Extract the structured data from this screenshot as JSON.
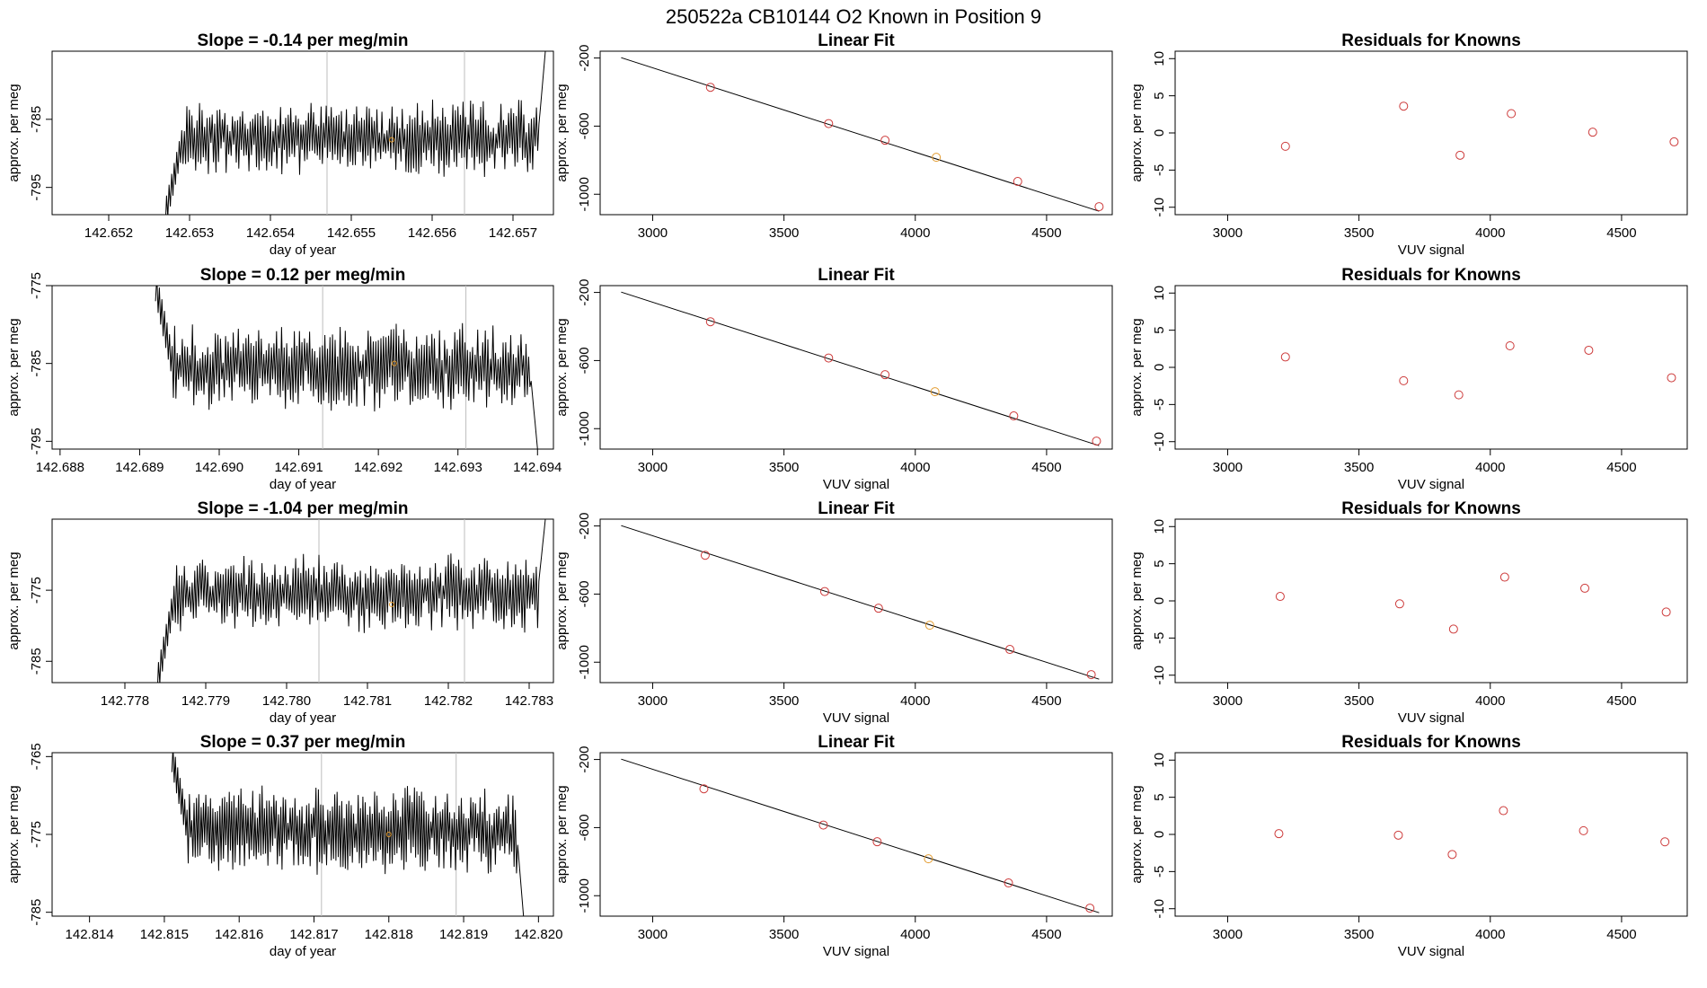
{
  "page_title": "250522a      CB10144    O2 Known in Position  9",
  "chart_data": [
    {
      "type": "line",
      "title": "Slope =  -0.14  per meg/min",
      "xlabel": "day of year",
      "ylabel": "approx. per meg",
      "xlim": [
        142.6513,
        142.6575
      ],
      "ylim": [
        -799,
        -775
      ],
      "xticks": [
        "142.652",
        "142.653",
        "142.654",
        "142.655",
        "142.656",
        "142.657"
      ],
      "yticks": [
        "-785",
        "-795"
      ],
      "start": 142.6527,
      "end": 142.6574,
      "center": -787.8,
      "amp": 4,
      "startv": -799,
      "endv": -775,
      "vlines": [
        142.6547,
        142.6564
      ],
      "highlight": {
        "x": 142.6555,
        "y": -788
      }
    },
    {
      "type": "line",
      "title": "Linear Fit",
      "xlabel": "",
      "ylabel": "approx. per meg",
      "xlim": [
        2800,
        4750
      ],
      "ylim": [
        -1120,
        -160
      ],
      "xticks": [
        "3000",
        "3500",
        "4000",
        "4500"
      ],
      "yticks": [
        "-200",
        "-600",
        "-1000"
      ],
      "fit": [
        [
          2880,
          -198
        ],
        [
          4700,
          -1100
        ]
      ],
      "x": [
        3220,
        3670,
        3885,
        4080,
        4390,
        4700
      ],
      "y": [
        -372,
        -585,
        -683,
        -783,
        -925,
        -1073
      ],
      "highlight_index": 3
    },
    {
      "type": "scatter",
      "title": "Residuals for Knowns",
      "xlabel": "VUV signal",
      "ylabel": "approx. per meg",
      "xlim": [
        2800,
        4750
      ],
      "ylim": [
        -11,
        11
      ],
      "xticks": [
        "3000",
        "3500",
        "4000",
        "4500"
      ],
      "yticks": [
        "10",
        "5",
        "0",
        "-5",
        "-10"
      ],
      "x": [
        3220,
        3670,
        3885,
        4080,
        4390,
        4700
      ],
      "y": [
        -1.8,
        3.6,
        -3.0,
        2.6,
        0.1,
        -1.2
      ]
    },
    {
      "type": "line",
      "title": "Slope =  0.12  per meg/min",
      "xlabel": "day of year",
      "ylabel": "approx. per meg",
      "xlim": [
        142.6879,
        142.6942
      ],
      "ylim": [
        -796,
        -775
      ],
      "xticks": [
        "142.688",
        "142.689",
        "142.690",
        "142.691",
        "142.692",
        "142.693",
        "142.694"
      ],
      "yticks": [
        "-775",
        "-785",
        "-795"
      ],
      "start": 142.6892,
      "end": 142.694,
      "center": -785.5,
      "amp": 4,
      "startv": -775,
      "endv": -796,
      "vlines": [
        142.6913,
        142.6931
      ],
      "highlight": {
        "x": 142.6922,
        "y": -785
      }
    },
    {
      "type": "line",
      "title": "Linear Fit",
      "xlabel": "VUV signal",
      "ylabel": "approx. per meg",
      "xlim": [
        2800,
        4750
      ],
      "ylim": [
        -1120,
        -160
      ],
      "xticks": [
        "3000",
        "3500",
        "4000",
        "4500"
      ],
      "yticks": [
        "-200",
        "-600",
        "-1000"
      ],
      "fit": [
        [
          2880,
          -198
        ],
        [
          4700,
          -1100
        ]
      ],
      "x": [
        3220,
        3670,
        3885,
        4075,
        4375,
        4690
      ],
      "y": [
        -372,
        -585,
        -683,
        -783,
        -925,
        -1073
      ],
      "highlight_index": 3
    },
    {
      "type": "scatter",
      "title": "Residuals for Knowns",
      "xlabel": "VUV signal",
      "ylabel": "approx. per meg",
      "xlim": [
        2800,
        4750
      ],
      "ylim": [
        -11,
        11
      ],
      "xticks": [
        "3000",
        "3500",
        "4000",
        "4500"
      ],
      "yticks": [
        "10",
        "5",
        "0",
        "-5",
        "-10"
      ],
      "x": [
        3220,
        3670,
        3880,
        4075,
        4375,
        4690
      ],
      "y": [
        1.4,
        -1.8,
        -3.7,
        2.9,
        2.3,
        -1.4
      ]
    },
    {
      "type": "line",
      "title": "Slope =  -1.04  per meg/min",
      "xlabel": "day of year",
      "ylabel": "approx. per meg",
      "xlim": [
        142.7771,
        142.7833
      ],
      "ylim": [
        -788,
        -765
      ],
      "xticks": [
        "142.778",
        "142.779",
        "142.780",
        "142.781",
        "142.782",
        "142.783"
      ],
      "yticks": [
        "-775",
        "-785"
      ],
      "start": 142.7784,
      "end": 142.7832,
      "center": -775.5,
      "amp": 4,
      "startv": -788,
      "endv": -765,
      "vlines": [
        142.7804,
        142.7822
      ],
      "highlight": {
        "x": 142.7813,
        "y": -777
      }
    },
    {
      "type": "line",
      "title": "Linear Fit",
      "xlabel": "VUV signal",
      "ylabel": "approx. per meg",
      "xlim": [
        2800,
        4750
      ],
      "ylim": [
        -1120,
        -160
      ],
      "xticks": [
        "3000",
        "3500",
        "4000",
        "4500"
      ],
      "yticks": [
        "-200",
        "-600",
        "-1000"
      ],
      "fit": [
        [
          2880,
          -198
        ],
        [
          4700,
          -1100
        ]
      ],
      "x": [
        3200,
        3655,
        3860,
        4055,
        4360,
        4670
      ],
      "y": [
        -372,
        -585,
        -683,
        -783,
        -925,
        -1073
      ],
      "highlight_index": 3
    },
    {
      "type": "scatter",
      "title": "Residuals for Knowns",
      "xlabel": "VUV signal",
      "ylabel": "approx. per meg",
      "xlim": [
        2800,
        4750
      ],
      "ylim": [
        -11,
        11
      ],
      "xticks": [
        "3000",
        "3500",
        "4000",
        "4500"
      ],
      "yticks": [
        "10",
        "5",
        "0",
        "-5",
        "-10"
      ],
      "x": [
        3200,
        3655,
        3860,
        4055,
        4360,
        4670
      ],
      "y": [
        0.6,
        -0.4,
        -3.8,
        3.2,
        1.7,
        -1.5
      ]
    },
    {
      "type": "line",
      "title": "Slope =  0.37  per meg/min",
      "xlabel": "day of year",
      "ylabel": "approx. per meg",
      "xlim": [
        142.8135,
        142.8202
      ],
      "ylim": [
        -785.5,
        -764.5
      ],
      "xticks": [
        "142.814",
        "142.815",
        "142.816",
        "142.817",
        "142.818",
        "142.819",
        "142.820"
      ],
      "yticks": [
        "-765",
        "-775",
        "-785"
      ],
      "start": 142.8151,
      "end": 142.8198,
      "center": -774.5,
      "amp": 4,
      "startv": -765,
      "endv": -785.5,
      "vlines": [
        142.8171,
        142.8189
      ],
      "highlight": {
        "x": 142.818,
        "y": -775
      }
    },
    {
      "type": "line",
      "title": "Linear Fit",
      "xlabel": "VUV signal",
      "ylabel": "approx. per meg",
      "xlim": [
        2800,
        4750
      ],
      "ylim": [
        -1120,
        -160
      ],
      "xticks": [
        "3000",
        "3500",
        "4000",
        "4500"
      ],
      "yticks": [
        "-200",
        "-600",
        "-1000"
      ],
      "fit": [
        [
          2880,
          -198
        ],
        [
          4700,
          -1100
        ]
      ],
      "x": [
        3195,
        3650,
        3855,
        4050,
        4355,
        4665
      ],
      "y": [
        -372,
        -585,
        -683,
        -783,
        -925,
        -1073
      ],
      "highlight_index": 3
    },
    {
      "type": "scatter",
      "title": "Residuals for Knowns",
      "xlabel": "VUV signal",
      "ylabel": "approx. per meg",
      "xlim": [
        2800,
        4750
      ],
      "ylim": [
        -11,
        11
      ],
      "xticks": [
        "3000",
        "3500",
        "4000",
        "4500"
      ],
      "yticks": [
        "10",
        "5",
        "0",
        "-5",
        "-10"
      ],
      "x": [
        3195,
        3650,
        3855,
        4050,
        4355,
        4665
      ],
      "y": [
        0.1,
        -0.1,
        -2.7,
        3.2,
        0.5,
        -1.0
      ]
    }
  ],
  "colors": {
    "series": "#000000",
    "point": "#cd3b3b",
    "highlight": "#e39a2b",
    "vline": "#bdbdbd"
  }
}
